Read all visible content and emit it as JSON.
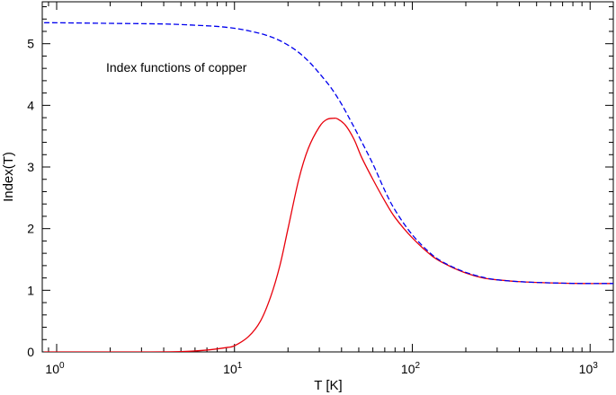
{
  "chart_data": {
    "type": "line",
    "title": "",
    "annotation": "Index functions of copper",
    "xlabel": "T [K]",
    "ylabel": "Index(T)",
    "xscale": "log",
    "xlim": [
      0.83,
      1350
    ],
    "ylim": [
      0,
      5.68
    ],
    "grid": false,
    "x_ticks": [
      {
        "value": 1,
        "base": "10",
        "exp": "0"
      },
      {
        "value": 10,
        "base": "10",
        "exp": "1"
      },
      {
        "value": 100,
        "base": "10",
        "exp": "2"
      },
      {
        "value": 1000,
        "base": "10",
        "exp": "3"
      }
    ],
    "y_ticks": [
      {
        "value": 0,
        "label": "0"
      },
      {
        "value": 1,
        "label": "1"
      },
      {
        "value": 2,
        "label": "2"
      },
      {
        "value": 3,
        "label": "3"
      },
      {
        "value": 4,
        "label": "4"
      },
      {
        "value": 5,
        "label": "5"
      }
    ],
    "series": [
      {
        "color": "#e8000b",
        "dash": "solid",
        "x": [
          0.85,
          1,
          2,
          3,
          5,
          7,
          9,
          10,
          12,
          14,
          16,
          18,
          20,
          23,
          26,
          30,
          33,
          36,
          38,
          42,
          47,
          52,
          60,
          70,
          80,
          100,
          130,
          160,
          200,
          250,
          300,
          400,
          600,
          900,
          1350
        ],
        "y": [
          0,
          0,
          0,
          0,
          0.005,
          0.03,
          0.07,
          0.1,
          0.25,
          0.5,
          0.9,
          1.4,
          2.0,
          2.8,
          3.3,
          3.65,
          3.77,
          3.79,
          3.78,
          3.68,
          3.45,
          3.15,
          2.8,
          2.45,
          2.18,
          1.85,
          1.55,
          1.4,
          1.28,
          1.2,
          1.17,
          1.14,
          1.12,
          1.11,
          1.11
        ]
      },
      {
        "color": "#0000ee",
        "dash": "dashed",
        "x": [
          0.85,
          1,
          2,
          4,
          6,
          8,
          10,
          12,
          15,
          18,
          22,
          26,
          30,
          35,
          40,
          45,
          50,
          60,
          70,
          80,
          100,
          130,
          160,
          200,
          250,
          300,
          400,
          600,
          900,
          1350
        ],
        "y": [
          5.34,
          5.34,
          5.33,
          5.32,
          5.3,
          5.28,
          5.25,
          5.21,
          5.14,
          5.05,
          4.9,
          4.72,
          4.52,
          4.28,
          4.02,
          3.75,
          3.5,
          3.05,
          2.62,
          2.3,
          1.9,
          1.57,
          1.41,
          1.29,
          1.21,
          1.17,
          1.14,
          1.12,
          1.11,
          1.11
        ]
      }
    ]
  }
}
